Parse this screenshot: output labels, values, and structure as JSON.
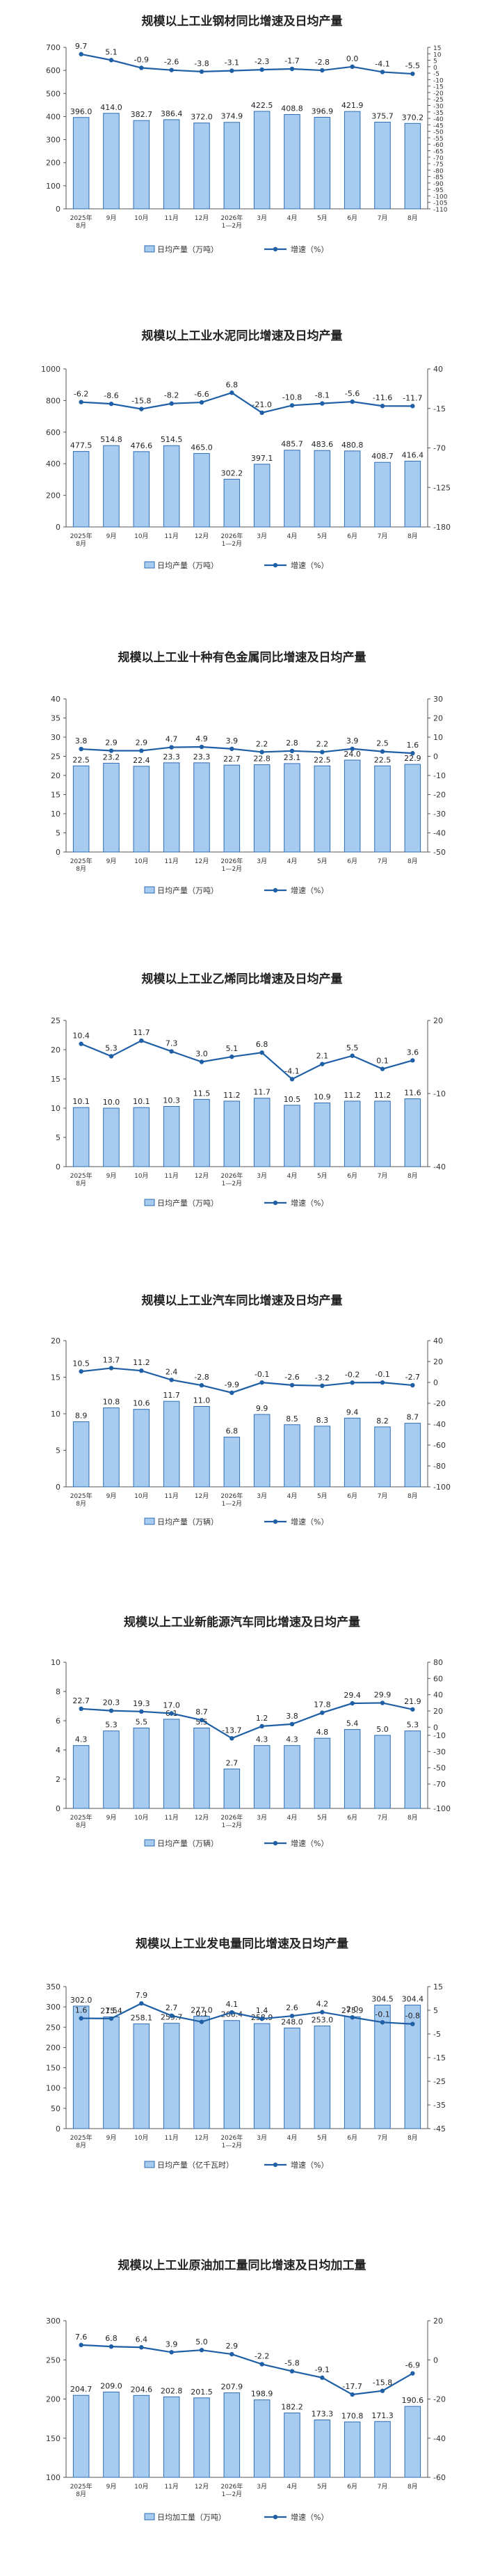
{
  "chart_data": [
    {
      "type": "bar+line",
      "title": "规模以上工业钢材同比增速及日均产量",
      "categories": [
        "2025年 8月",
        "9月",
        "10月",
        "11月",
        "12月",
        "2026年 1—2月",
        "3月",
        "4月",
        "5月",
        "6月",
        "7月",
        "8月"
      ],
      "bars": {
        "name": "日均产量（万吨）",
        "values": [
          396.0,
          414.0,
          382.7,
          386.4,
          372.0,
          374.9,
          422.5,
          408.8,
          396.9,
          421.9,
          375.7,
          370.2
        ]
      },
      "line": {
        "name": "增速（%）",
        "values": [
          9.7,
          5.1,
          -0.9,
          -2.6,
          -3.8,
          -3.1,
          -2.3,
          -1.7,
          -2.8,
          0.0,
          -4.1,
          -5.5
        ]
      },
      "left_axis": {
        "min": 0,
        "max": 700,
        "ticks": [
          0,
          100,
          200,
          300,
          400,
          500,
          600,
          700
        ]
      },
      "right_axis": {
        "min": -110,
        "max": 15,
        "ticks": [
          15,
          10,
          5,
          0,
          -5,
          -10,
          -15,
          -20,
          -25,
          -30,
          -35,
          -40,
          -45,
          -50,
          -55,
          -60,
          -65,
          -70,
          -75,
          -80,
          -85,
          -90,
          -95,
          -100,
          -105,
          -110
        ]
      }
    },
    {
      "type": "bar+line",
      "title": "规模以上工业水泥同比增速及日均产量",
      "categories": [
        "2025年 8月",
        "9月",
        "10月",
        "11月",
        "12月",
        "2026年 1—2月",
        "3月",
        "4月",
        "5月",
        "6月",
        "7月",
        "8月"
      ],
      "bars": {
        "name": "日均产量（万吨）",
        "values": [
          477.5,
          514.8,
          476.6,
          514.5,
          465.0,
          302.2,
          397.1,
          485.7,
          483.6,
          480.8,
          408.7,
          416.4
        ]
      },
      "line": {
        "name": "增速（%）",
        "values": [
          -6.2,
          -8.6,
          -15.8,
          -8.2,
          -6.6,
          6.8,
          -21.0,
          -10.8,
          -8.1,
          -5.6,
          -11.6,
          -11.7
        ]
      },
      "left_axis": {
        "min": 0,
        "max": 1000,
        "ticks": [
          0,
          200,
          400,
          600,
          800,
          1000
        ]
      },
      "right_axis": {
        "min": -180,
        "max": 40,
        "ticks": [
          40,
          -15,
          -70,
          -125,
          -180
        ]
      }
    },
    {
      "type": "bar+line",
      "title": "规模以上工业十种有色金属同比增速及日均产量",
      "categories": [
        "2025年 8月",
        "9月",
        "10月",
        "11月",
        "12月",
        "2026年 1—2月",
        "3月",
        "4月",
        "5月",
        "6月",
        "7月",
        "8月"
      ],
      "bars": {
        "name": "日均产量（万吨）",
        "values": [
          22.5,
          23.2,
          22.4,
          23.3,
          23.3,
          22.7,
          22.8,
          23.1,
          22.5,
          24.0,
          22.5,
          22.9
        ]
      },
      "line": {
        "name": "增速（%）",
        "values": [
          3.8,
          2.9,
          2.9,
          4.7,
          4.9,
          3.9,
          2.2,
          2.8,
          2.2,
          3.9,
          2.5,
          1.6
        ]
      },
      "left_axis": {
        "min": 0,
        "max": 40,
        "ticks": [
          0,
          5,
          10,
          15,
          20,
          25,
          30,
          35,
          40
        ]
      },
      "right_axis": {
        "min": -50,
        "max": 30,
        "ticks": [
          30,
          20,
          10,
          0,
          -10,
          -20,
          -30,
          -40,
          -50
        ]
      }
    },
    {
      "type": "bar+line",
      "title": "规模以上工业乙烯同比增速及日均产量",
      "categories": [
        "2025年 8月",
        "9月",
        "10月",
        "11月",
        "12月",
        "2026年 1—2月",
        "3月",
        "4月",
        "5月",
        "6月",
        "7月",
        "8月"
      ],
      "bars": {
        "name": "日均产量（万吨）",
        "values": [
          10.1,
          10.0,
          10.1,
          10.3,
          11.5,
          11.2,
          11.7,
          10.5,
          10.9,
          11.2,
          11.2,
          11.6
        ]
      },
      "line": {
        "name": "增速（%）",
        "values": [
          10.4,
          5.3,
          11.7,
          7.3,
          3.0,
          5.1,
          6.8,
          -4.1,
          2.1,
          5.5,
          0.1,
          3.6
        ]
      },
      "left_axis": {
        "min": 0,
        "max": 25,
        "ticks": [
          0,
          5,
          10,
          15,
          20,
          25
        ]
      },
      "right_axis": {
        "min": -40,
        "max": 20,
        "ticks": [
          20,
          -10,
          -40
        ]
      }
    },
    {
      "type": "bar+line",
      "title": "规模以上工业汽车同比增速及日均产量",
      "categories": [
        "2025年 8月",
        "9月",
        "10月",
        "11月",
        "12月",
        "2026年 1—2月",
        "3月",
        "4月",
        "5月",
        "6月",
        "7月",
        "8月"
      ],
      "bars": {
        "name": "日均产量（万辆）",
        "values": [
          8.9,
          10.8,
          10.6,
          11.7,
          11.0,
          6.8,
          9.9,
          8.5,
          8.3,
          9.4,
          8.2,
          8.7
        ]
      },
      "line": {
        "name": "增速（%）",
        "values": [
          10.5,
          13.7,
          11.2,
          2.4,
          -2.8,
          -9.9,
          -0.1,
          -2.6,
          -3.2,
          -0.2,
          -0.1,
          -2.7
        ]
      },
      "left_axis": {
        "min": 0,
        "max": 20,
        "ticks": [
          0,
          5,
          10,
          15,
          20
        ]
      },
      "right_axis": {
        "min": -100,
        "max": 40,
        "ticks": [
          40,
          20,
          0,
          -20,
          -40,
          -60,
          -80,
          -100
        ]
      }
    },
    {
      "type": "bar+line",
      "title": "规模以上工业新能源汽车同比增速及日均产量",
      "categories": [
        "2025年 8月",
        "9月",
        "10月",
        "11月",
        "12月",
        "2026年 1—2月",
        "3月",
        "4月",
        "5月",
        "6月",
        "7月",
        "8月"
      ],
      "bars": {
        "name": "日均产量（万辆）",
        "values": [
          4.3,
          5.3,
          5.5,
          6.1,
          5.5,
          2.7,
          4.3,
          4.3,
          4.8,
          5.4,
          5.0,
          5.3
        ]
      },
      "line": {
        "name": "增速（%）",
        "values": [
          22.7,
          20.3,
          19.3,
          17.0,
          8.7,
          -13.7,
          1.2,
          3.8,
          17.8,
          29.4,
          29.9,
          21.9
        ]
      },
      "left_axis": {
        "min": 0,
        "max": 10,
        "ticks": [
          0,
          2,
          4,
          6,
          8,
          10
        ]
      },
      "right_axis": {
        "min": -100,
        "max": 80,
        "ticks": [
          80,
          60,
          40,
          20,
          0,
          -10,
          -30,
          -50,
          -70,
          -100
        ]
      }
    },
    {
      "type": "bar+line",
      "title": "规模以上工业发电量同比增速及日均产量",
      "categories": [
        "2025年 8月",
        "9月",
        "10月",
        "11月",
        "12月",
        "2026年 1—2月",
        "3月",
        "4月",
        "5月",
        "6月",
        "7月",
        "8月"
      ],
      "bars": {
        "name": "日均产量（亿千瓦时）",
        "values": [
          302.0,
          275.4,
          258.1,
          259.7,
          277.0,
          266.4,
          258.9,
          248.0,
          253.0,
          275.9,
          304.5,
          304.4
        ]
      },
      "line": {
        "name": "增速（%）",
        "values": [
          1.6,
          1.5,
          7.9,
          2.7,
          0.1,
          4.1,
          1.4,
          2.6,
          4.2,
          2.0,
          -0.1,
          -0.8
        ]
      },
      "left_axis": {
        "min": 0,
        "max": 350,
        "ticks": [
          0,
          50,
          100,
          150,
          200,
          250,
          300,
          350
        ]
      },
      "right_axis": {
        "min": -45,
        "max": 15,
        "ticks": [
          15,
          5,
          -5,
          -15,
          -25,
          -35,
          -45
        ]
      }
    },
    {
      "type": "bar+line",
      "title": "规模以上工业原油加工量同比增速及日均加工量",
      "categories": [
        "2025年 8月",
        "9月",
        "10月",
        "11月",
        "12月",
        "2026年 1—2月",
        "3月",
        "4月",
        "5月",
        "6月",
        "7月",
        "8月"
      ],
      "bars": {
        "name": "日均加工量（万吨）",
        "values": [
          204.7,
          209.0,
          204.6,
          202.8,
          201.5,
          207.9,
          198.9,
          182.2,
          173.3,
          170.8,
          171.3,
          190.6
        ]
      },
      "line": {
        "name": "增速（%）",
        "values": [
          7.6,
          6.8,
          6.4,
          3.9,
          5.0,
          2.9,
          -2.2,
          -5.8,
          -9.1,
          -17.7,
          -15.8,
          -6.9
        ]
      },
      "left_axis": {
        "min": 100,
        "max": 300,
        "ticks": [
          100,
          150,
          200,
          250,
          300
        ]
      },
      "right_axis": {
        "min": -60,
        "max": 20,
        "ticks": [
          20,
          0,
          -20,
          -40,
          -60
        ]
      }
    }
  ]
}
